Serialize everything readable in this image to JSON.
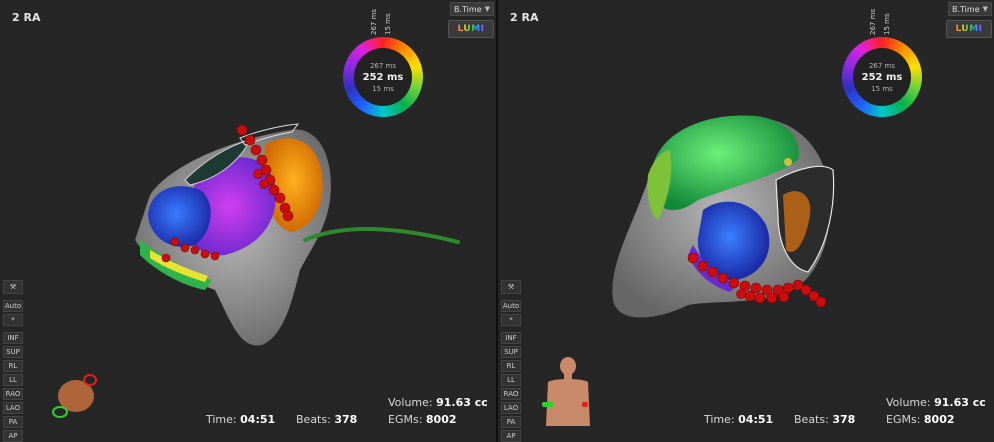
{
  "left_view": {
    "title": "2 RA",
    "mode": "B.Time",
    "lumi": "LUMI",
    "ring": {
      "top": "267 ms",
      "mid": "252 ms",
      "bot": "15 ms",
      "vert_max": "267 ms",
      "vert_min": "15 ms"
    },
    "tools": [
      "Auto",
      "*",
      "INF",
      "SUP",
      "RL",
      "LL",
      "RAO",
      "LAO",
      "PA",
      "AP"
    ],
    "volume_label": "Volume:",
    "volume_value": "91.63 cc",
    "time_label": "Time:",
    "time_value": "04:51",
    "beats_label": "Beats:",
    "beats_value": "378",
    "egms_label": "EGMs:",
    "egms_value": "8002"
  },
  "right_view": {
    "title": "2 RA",
    "mode": "B.Time",
    "lumi": "LUMI",
    "ring": {
      "top": "267 ms",
      "mid": "252 ms",
      "bot": "15 ms",
      "vert_max": "267 ms",
      "vert_min": "15 ms"
    },
    "tools": [
      "Auto",
      "*",
      "INF",
      "SUP",
      "RL",
      "LL",
      "RAO",
      "LAO",
      "PA",
      "AP"
    ],
    "volume_label": "Volume:",
    "volume_value": "91.63 cc",
    "time_label": "Time:",
    "time_value": "04:51",
    "beats_label": "Beats:",
    "beats_value": "378",
    "egms_label": "EGMs:",
    "egms_value": "8002"
  },
  "colors": {
    "background": "#262626",
    "accent_red": "#cc0d0d",
    "catheter_green": "#2d8a2d"
  }
}
